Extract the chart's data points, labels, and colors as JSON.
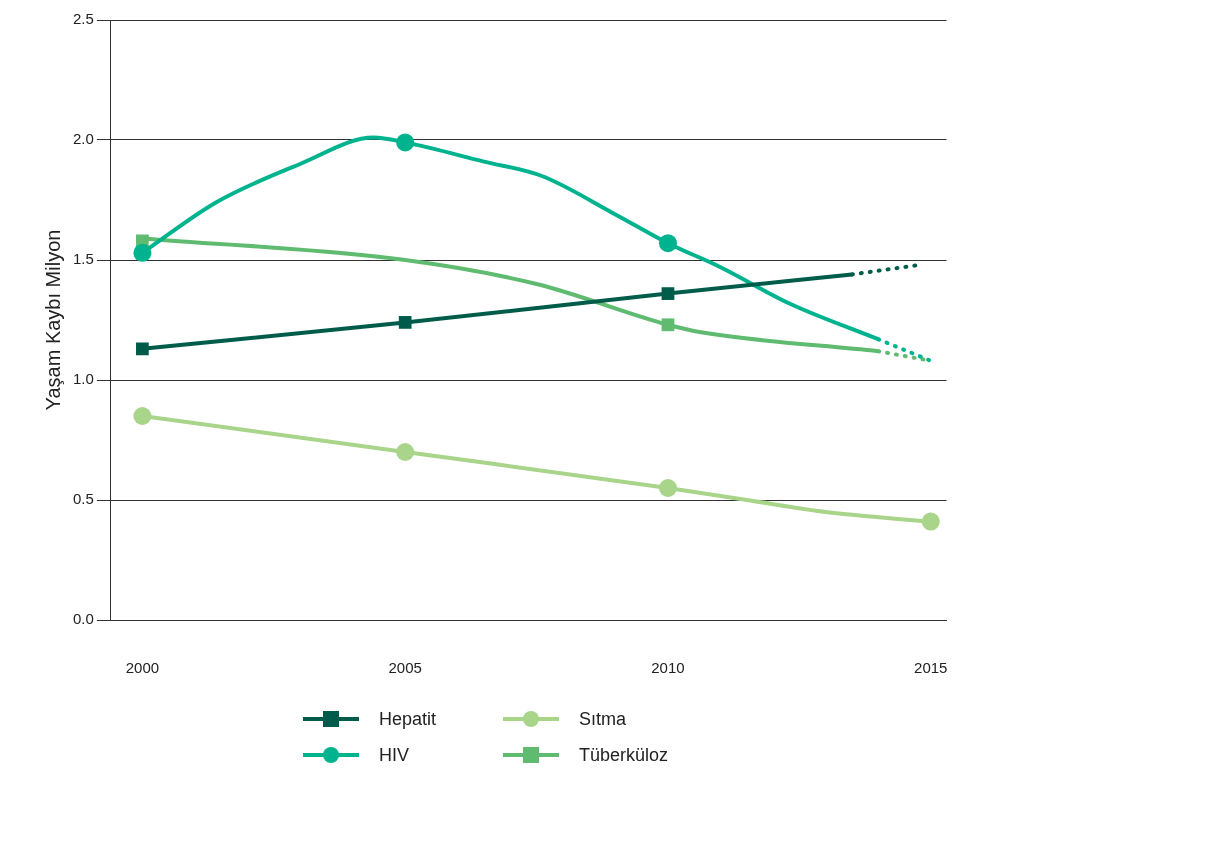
{
  "chart_data": {
    "type": "line",
    "ylabel": "Yaşam Kaybı Milyon",
    "xlim": [
      1999.4,
      2015.3
    ],
    "xticks": [
      2000,
      2005,
      2010,
      2015
    ],
    "ylim": [
      0,
      2.5
    ],
    "yticks": [
      {
        "value": 0,
        "label": "0.0"
      },
      {
        "value": 0.5,
        "label": "0.5"
      },
      {
        "value": 1,
        "label": "1.0"
      },
      {
        "value": 1.5,
        "label": "1.5"
      },
      {
        "value": 2,
        "label": "2.0"
      },
      {
        "value": 2.5,
        "label": "2.5"
      }
    ],
    "grid": "y",
    "legend": "bottom",
    "series": [
      {
        "type": "line",
        "color": "#005c4a",
        "marker": "none",
        "x": [
          2000,
          2005,
          2010,
          2013.5
        ],
        "values": [
          1.13,
          1.24,
          1.36,
          1.44
        ]
      },
      {
        "type": "line",
        "color": "#005c4a",
        "marker": "none",
        "line_style": "dotted",
        "x": [
          2013.5,
          2014.8
        ],
        "values": [
          1.44,
          1.48
        ]
      },
      {
        "type": "line",
        "color": "#00b38f",
        "marker": "none",
        "x": [
          2000,
          2001.4,
          2003,
          2004.4,
          2005,
          2006.5,
          2007.6,
          2009,
          2010,
          2011,
          2012.3,
          2014
        ],
        "values": [
          1.53,
          1.74,
          1.9,
          2.01,
          1.99,
          1.91,
          1.85,
          1.69,
          1.57,
          1.47,
          1.32,
          1.17
        ]
      },
      {
        "type": "line",
        "color": "#00b38f",
        "marker": "none",
        "line_style": "dotted",
        "x": [
          2014,
          2015
        ],
        "values": [
          1.17,
          1.08
        ]
      },
      {
        "type": "line",
        "color": "#a8d58a",
        "marker": "none",
        "x": [
          2000,
          2005,
          2010,
          2011.5,
          2013,
          2015
        ],
        "values": [
          0.85,
          0.7,
          0.55,
          0.5,
          0.45,
          0.41
        ]
      },
      {
        "type": "line",
        "color": "#5fbb6f",
        "marker": "none",
        "x": [
          2000,
          2005,
          2007.5,
          2010,
          2010.6,
          2014
        ],
        "values": [
          1.59,
          1.5,
          1.4,
          1.23,
          1.2,
          1.12
        ]
      },
      {
        "type": "line",
        "color": "#5fbb6f",
        "marker": "none",
        "line_style": "dotted",
        "x": [
          2014,
          2015
        ],
        "values": [
          1.12,
          1.08
        ]
      },
      {
        "type": "scatter",
        "name": "Hepatit",
        "color": "#005c4a",
        "marker": "square",
        "x": [
          2000,
          2005,
          2010
        ],
        "values": [
          1.13,
          1.24,
          1.36
        ]
      },
      {
        "type": "scatter",
        "name": "HIV",
        "color": "#00b38f",
        "marker": "circle",
        "x": [
          2000,
          2005,
          2010
        ],
        "values": [
          1.53,
          1.99,
          1.57
        ]
      },
      {
        "type": "scatter",
        "name": "Sıtma",
        "color": "#a8d58a",
        "marker": "circle",
        "x": [
          2000,
          2005,
          2010,
          2015
        ],
        "values": [
          0.85,
          0.7,
          0.55,
          0.41
        ]
      },
      {
        "type": "scatter",
        "name": "Tüberküloz",
        "color": "#5fbb6f",
        "marker": "square",
        "x": [
          2000,
          2010
        ],
        "values": [
          1.58,
          1.23
        ]
      }
    ]
  }
}
